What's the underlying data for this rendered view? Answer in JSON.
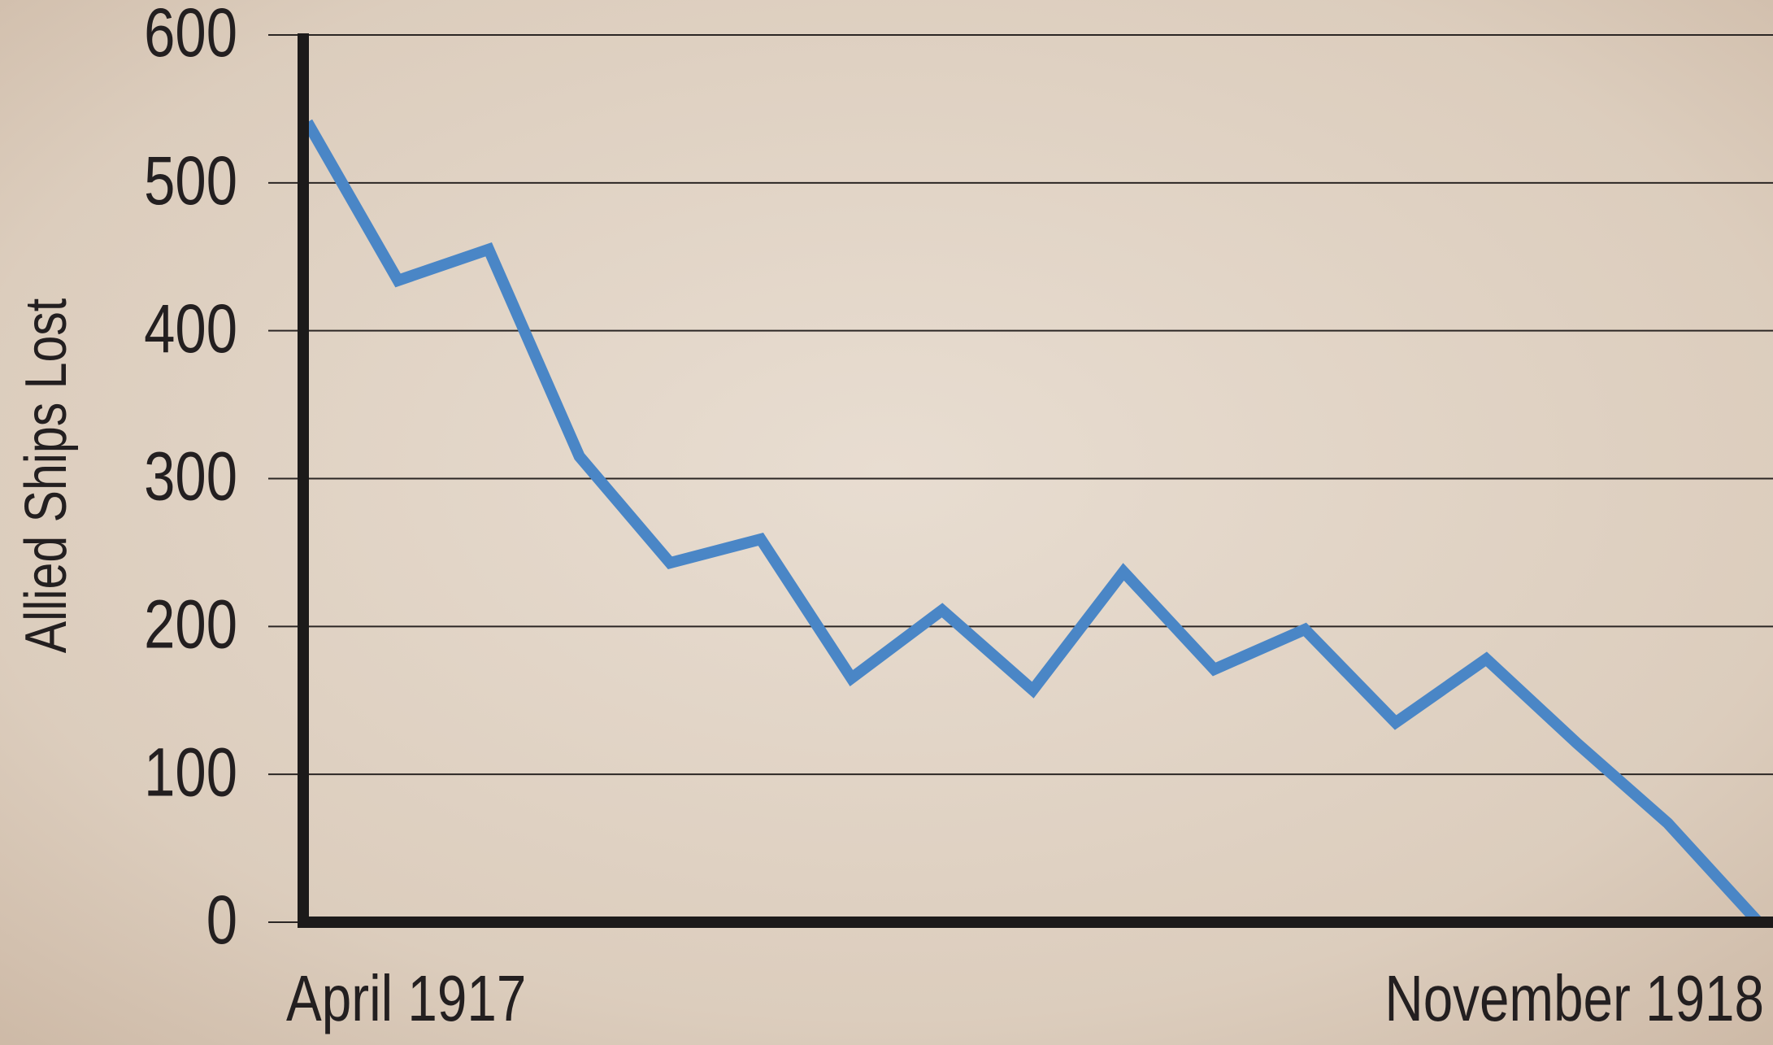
{
  "chart_data": {
    "type": "line",
    "y_label": "Allied Ships Lost",
    "categories": [
      "April 1917",
      null,
      null,
      null,
      null,
      null,
      null,
      null,
      null,
      null,
      null,
      null,
      null,
      null,
      null,
      null,
      "November 1918"
    ],
    "series": [
      {
        "name": "Allied Ships Lost",
        "color": "#4a86c6",
        "values": [
          541,
          434,
          455,
          315,
          243,
          259,
          165,
          211,
          157,
          237,
          171,
          198,
          135,
          178,
          121,
          67,
          0
        ]
      }
    ],
    "ylim": [
      0,
      600
    ],
    "yticks": [
      0,
      100,
      200,
      300,
      400,
      500,
      600
    ],
    "grid": true
  }
}
